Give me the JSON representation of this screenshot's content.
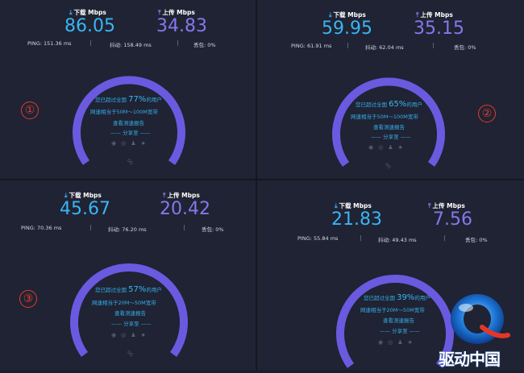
{
  "labels": {
    "download": "下载 Mbps",
    "upload": "上传 Mbps",
    "ping_prefix": "PING:",
    "jitter_prefix": "抖动:",
    "loss_prefix": "丢包:",
    "surpass_prefix": "您已超过全国",
    "surpass_suffix": "的用户",
    "report": "查看测速报告",
    "share": "—— 分享至 ——"
  },
  "panels": [
    {
      "marker": "①",
      "download": "86.05",
      "upload": "34.83",
      "ping": "151.36 ms",
      "jitter": "158.49 ms",
      "loss": "0%",
      "percent": "77%",
      "percent_value": 77,
      "equivalent": "网速相当于50M～100M宽带"
    },
    {
      "marker": "②",
      "download": "59.95",
      "upload": "35.15",
      "ping": "61.91 ms",
      "jitter": "62.04 ms",
      "loss": "0%",
      "percent": "65%",
      "percent_value": 65,
      "equivalent": "网速相当于50M～100M宽带"
    },
    {
      "marker": "③",
      "download": "45.67",
      "upload": "20.42",
      "ping": "70.36 ms",
      "jitter": "76.20 ms",
      "loss": "0%",
      "percent": "57%",
      "percent_value": 57,
      "equivalent": "网速相当于20M～50M宽带"
    },
    {
      "marker": "",
      "download": "21.83",
      "upload": "7.56",
      "ping": "55.84 ms",
      "jitter": "49.43 ms",
      "loss": "0%",
      "percent": "39%",
      "percent_value": 39,
      "equivalent": "网速相当于20M～50M宽带"
    }
  ],
  "gauge_mark": "QQ",
  "logo": {
    "text": "驱动中国"
  },
  "colors": {
    "download": "#3ab4f2",
    "upload": "#8577ec",
    "arc": "#6a5ae0",
    "marker": "#e43c2c"
  }
}
